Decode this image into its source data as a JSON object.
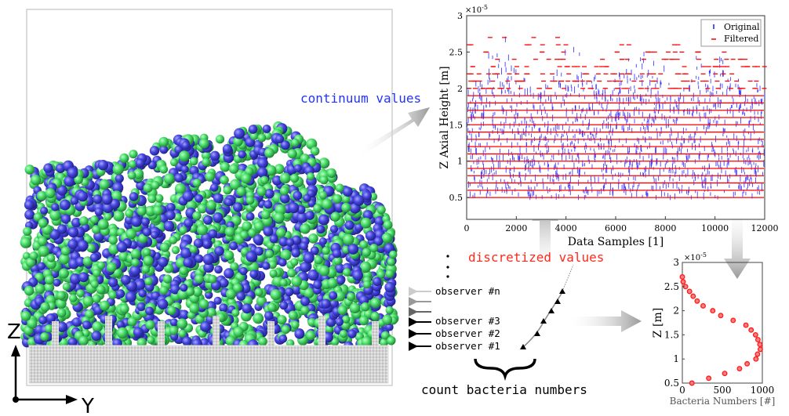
{
  "labels": {
    "continuum": "continuum values",
    "discretized": "discretized values",
    "count": "count bacteria numbers",
    "observers": [
      "observer #n",
      "observer #3",
      "observer #2",
      "observer #1"
    ],
    "axis_z": "Z",
    "axis_y": "Y"
  },
  "colors": {
    "continuum_text": "#2233ff",
    "discretized_text": "#ff2a1a",
    "bacteria_green": "#44dd66",
    "bacteria_blue": "#4444dd",
    "substrate": "#c8c8c8",
    "original": "#1a1aff",
    "filtered": "#ff0000"
  },
  "chart_data": [
    {
      "type": "scatter",
      "xlabel": "Data Samples [1]",
      "ylabel": "Z Axial Height [m]",
      "y_multiplier": "×10",
      "y_exponent": "-5",
      "xlim": [
        0,
        12000
      ],
      "ylim": [
        0.2,
        3
      ],
      "xticks": [
        "0",
        "2000",
        "4000",
        "6000",
        "8000",
        "10000",
        "12000"
      ],
      "yticks": [
        "0.5",
        "1",
        "1.5",
        "2",
        "2.5",
        "3"
      ],
      "legend_position": "top-right",
      "grid": false,
      "series": [
        {
          "name": "Original",
          "marker": "vertical tick",
          "color": "#1a1aff"
        },
        {
          "name": "Filtered",
          "marker": "horizontal dash",
          "color": "#ff0000",
          "levels": [
            0.5,
            0.6,
            0.7,
            0.8,
            0.9,
            1.0,
            1.1,
            1.2,
            1.3,
            1.4,
            1.5,
            1.6,
            1.7,
            1.8,
            1.9,
            2.0,
            2.1,
            2.2,
            2.3,
            2.4,
            2.5,
            2.6,
            2.7
          ]
        }
      ]
    },
    {
      "type": "scatter",
      "xlabel": "Bacteria Numbers [#]",
      "ylabel": "Z [m]",
      "y_multiplier": "×10",
      "y_exponent": "-5",
      "xlim": [
        0,
        1000
      ],
      "ylim": [
        0.5,
        3
      ],
      "xticks": [
        "0",
        "500",
        "1000"
      ],
      "yticks": [
        "0.5",
        "1",
        "1.5",
        "2",
        "2.5",
        "3"
      ],
      "grid": false,
      "x": [
        120,
        330,
        530,
        715,
        810,
        920,
        940,
        975,
        970,
        945,
        915,
        860,
        795,
        635,
        480,
        380,
        260,
        185,
        135,
        90,
        40,
        10,
        0
      ],
      "y": [
        0.5,
        0.6,
        0.7,
        0.8,
        0.9,
        1.0,
        1.1,
        1.2,
        1.3,
        1.4,
        1.5,
        1.6,
        1.7,
        1.8,
        1.9,
        2.0,
        2.1,
        2.2,
        2.3,
        2.4,
        2.5,
        2.6,
        2.7
      ]
    }
  ]
}
